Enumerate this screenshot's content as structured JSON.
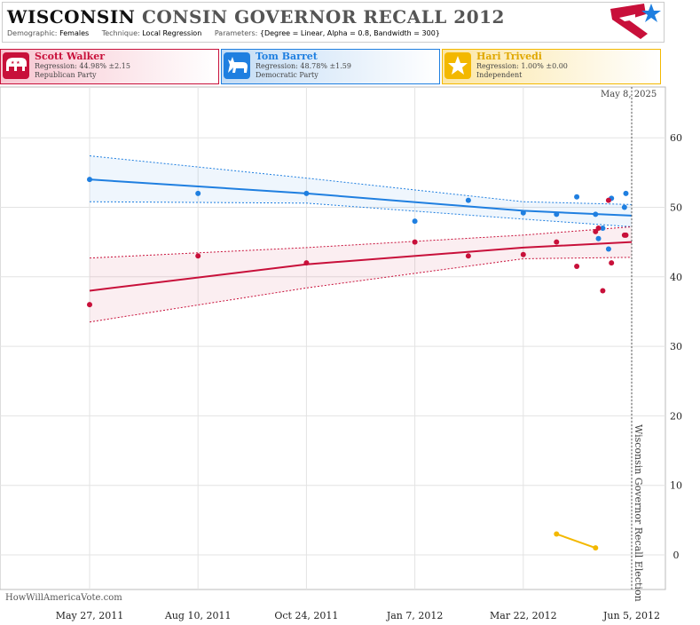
{
  "header": {
    "title_part1": "WISCONSIN",
    "title_part2": "CONSIN GOVERNOR RECALL  2012",
    "demographic_label": "Demographic:",
    "demographic_value": "Females",
    "technique_label": "Technique:",
    "technique_value": "Local Regression",
    "parameters_label": "Parameters:",
    "parameters_value": "{Degree = Linear, Alpha = 0.8, Bandwidth = 300}"
  },
  "candidates": [
    {
      "name": "Scott Walker",
      "regression": "Regression: 44.98% ±2.15",
      "party": "Republican Party",
      "color": "#c8103a",
      "icon": "elephant-icon"
    },
    {
      "name": "Tom Barret",
      "regression": "Regression: 48.78% ±1.59",
      "party": "Democratic Party",
      "color": "#1f7fe0",
      "icon": "donkey-icon"
    },
    {
      "name": "Hari Trivedi",
      "regression": "Regression: 1.00% ±0.00",
      "party": "Independent",
      "color": "#f3b800",
      "icon": "star-icon"
    }
  ],
  "watermark": "HowWillAmericaVote.com",
  "date_stamp": "May 8, 2025",
  "chart_data": {
    "type": "scatter",
    "x_ticks": [
      "May 27, 2011",
      "Aug 10, 2011",
      "Oct 24, 2011",
      "Jan 7, 2012",
      "Mar 22, 2012",
      "Jun 5, 2012"
    ],
    "y_ticks": [
      0,
      10,
      20,
      30,
      40,
      50,
      60
    ],
    "ylim": [
      -5,
      69
    ],
    "grid": true,
    "event_line": {
      "date": "Jun 5, 2012",
      "label": "Wisconsin Governor Recall  Election"
    },
    "series": [
      {
        "name": "Tom Barret",
        "color": "#1f7fe0",
        "points": [
          {
            "x": "2011-05-27",
            "y": 54
          },
          {
            "x": "2011-08-10",
            "y": 52
          },
          {
            "x": "2011-10-24",
            "y": 52
          },
          {
            "x": "2012-01-07",
            "y": 48
          },
          {
            "x": "2012-02-13",
            "y": 51
          },
          {
            "x": "2012-03-22",
            "y": 49.2
          },
          {
            "x": "2012-04-14",
            "y": 49
          },
          {
            "x": "2012-04-28",
            "y": 51.5
          },
          {
            "x": "2012-05-11",
            "y": 49
          },
          {
            "x": "2012-05-13",
            "y": 45.5
          },
          {
            "x": "2012-05-16",
            "y": 47
          },
          {
            "x": "2012-05-20",
            "y": 44
          },
          {
            "x": "2012-05-22",
            "y": 51.3
          },
          {
            "x": "2012-05-31",
            "y": 50
          },
          {
            "x": "2012-06-01",
            "y": 52
          }
        ],
        "fit": [
          {
            "x": "2011-05-27",
            "y": 54,
            "lo": 50.8,
            "hi": 57.4
          },
          {
            "x": "2011-10-24",
            "y": 52,
            "lo": 50.6,
            "hi": 54.2
          },
          {
            "x": "2012-03-22",
            "y": 49.5,
            "lo": 48.3,
            "hi": 50.8
          },
          {
            "x": "2012-06-05",
            "y": 48.8,
            "lo": 47.2,
            "hi": 50.4
          }
        ]
      },
      {
        "name": "Scott Walker",
        "color": "#c8103a",
        "points": [
          {
            "x": "2011-05-27",
            "y": 36
          },
          {
            "x": "2011-08-10",
            "y": 43
          },
          {
            "x": "2011-10-24",
            "y": 42
          },
          {
            "x": "2012-01-07",
            "y": 45
          },
          {
            "x": "2012-02-13",
            "y": 43
          },
          {
            "x": "2012-03-22",
            "y": 43.2
          },
          {
            "x": "2012-04-14",
            "y": 45
          },
          {
            "x": "2012-04-28",
            "y": 41.5
          },
          {
            "x": "2012-05-11",
            "y": 46.5
          },
          {
            "x": "2012-05-13",
            "y": 47
          },
          {
            "x": "2012-05-16",
            "y": 38
          },
          {
            "x": "2012-05-20",
            "y": 51
          },
          {
            "x": "2012-05-22",
            "y": 42
          },
          {
            "x": "2012-05-31",
            "y": 46
          },
          {
            "x": "2012-06-01",
            "y": 46
          }
        ],
        "fit": [
          {
            "x": "2011-05-27",
            "y": 38,
            "lo": 33.5,
            "hi": 42.7
          },
          {
            "x": "2011-10-24",
            "y": 41.8,
            "lo": 38.4,
            "hi": 44.2
          },
          {
            "x": "2012-03-22",
            "y": 44.2,
            "lo": 42.6,
            "hi": 46
          },
          {
            "x": "2012-06-05",
            "y": 45,
            "lo": 42.8,
            "hi": 47.2
          }
        ]
      },
      {
        "name": "Hari Trivedi",
        "color": "#f3b800",
        "points": [
          {
            "x": "2012-04-14",
            "y": 3
          },
          {
            "x": "2012-05-11",
            "y": 1
          }
        ],
        "fit": [
          {
            "x": "2012-04-14",
            "y": 3
          },
          {
            "x": "2012-05-11",
            "y": 1
          }
        ]
      }
    ]
  }
}
